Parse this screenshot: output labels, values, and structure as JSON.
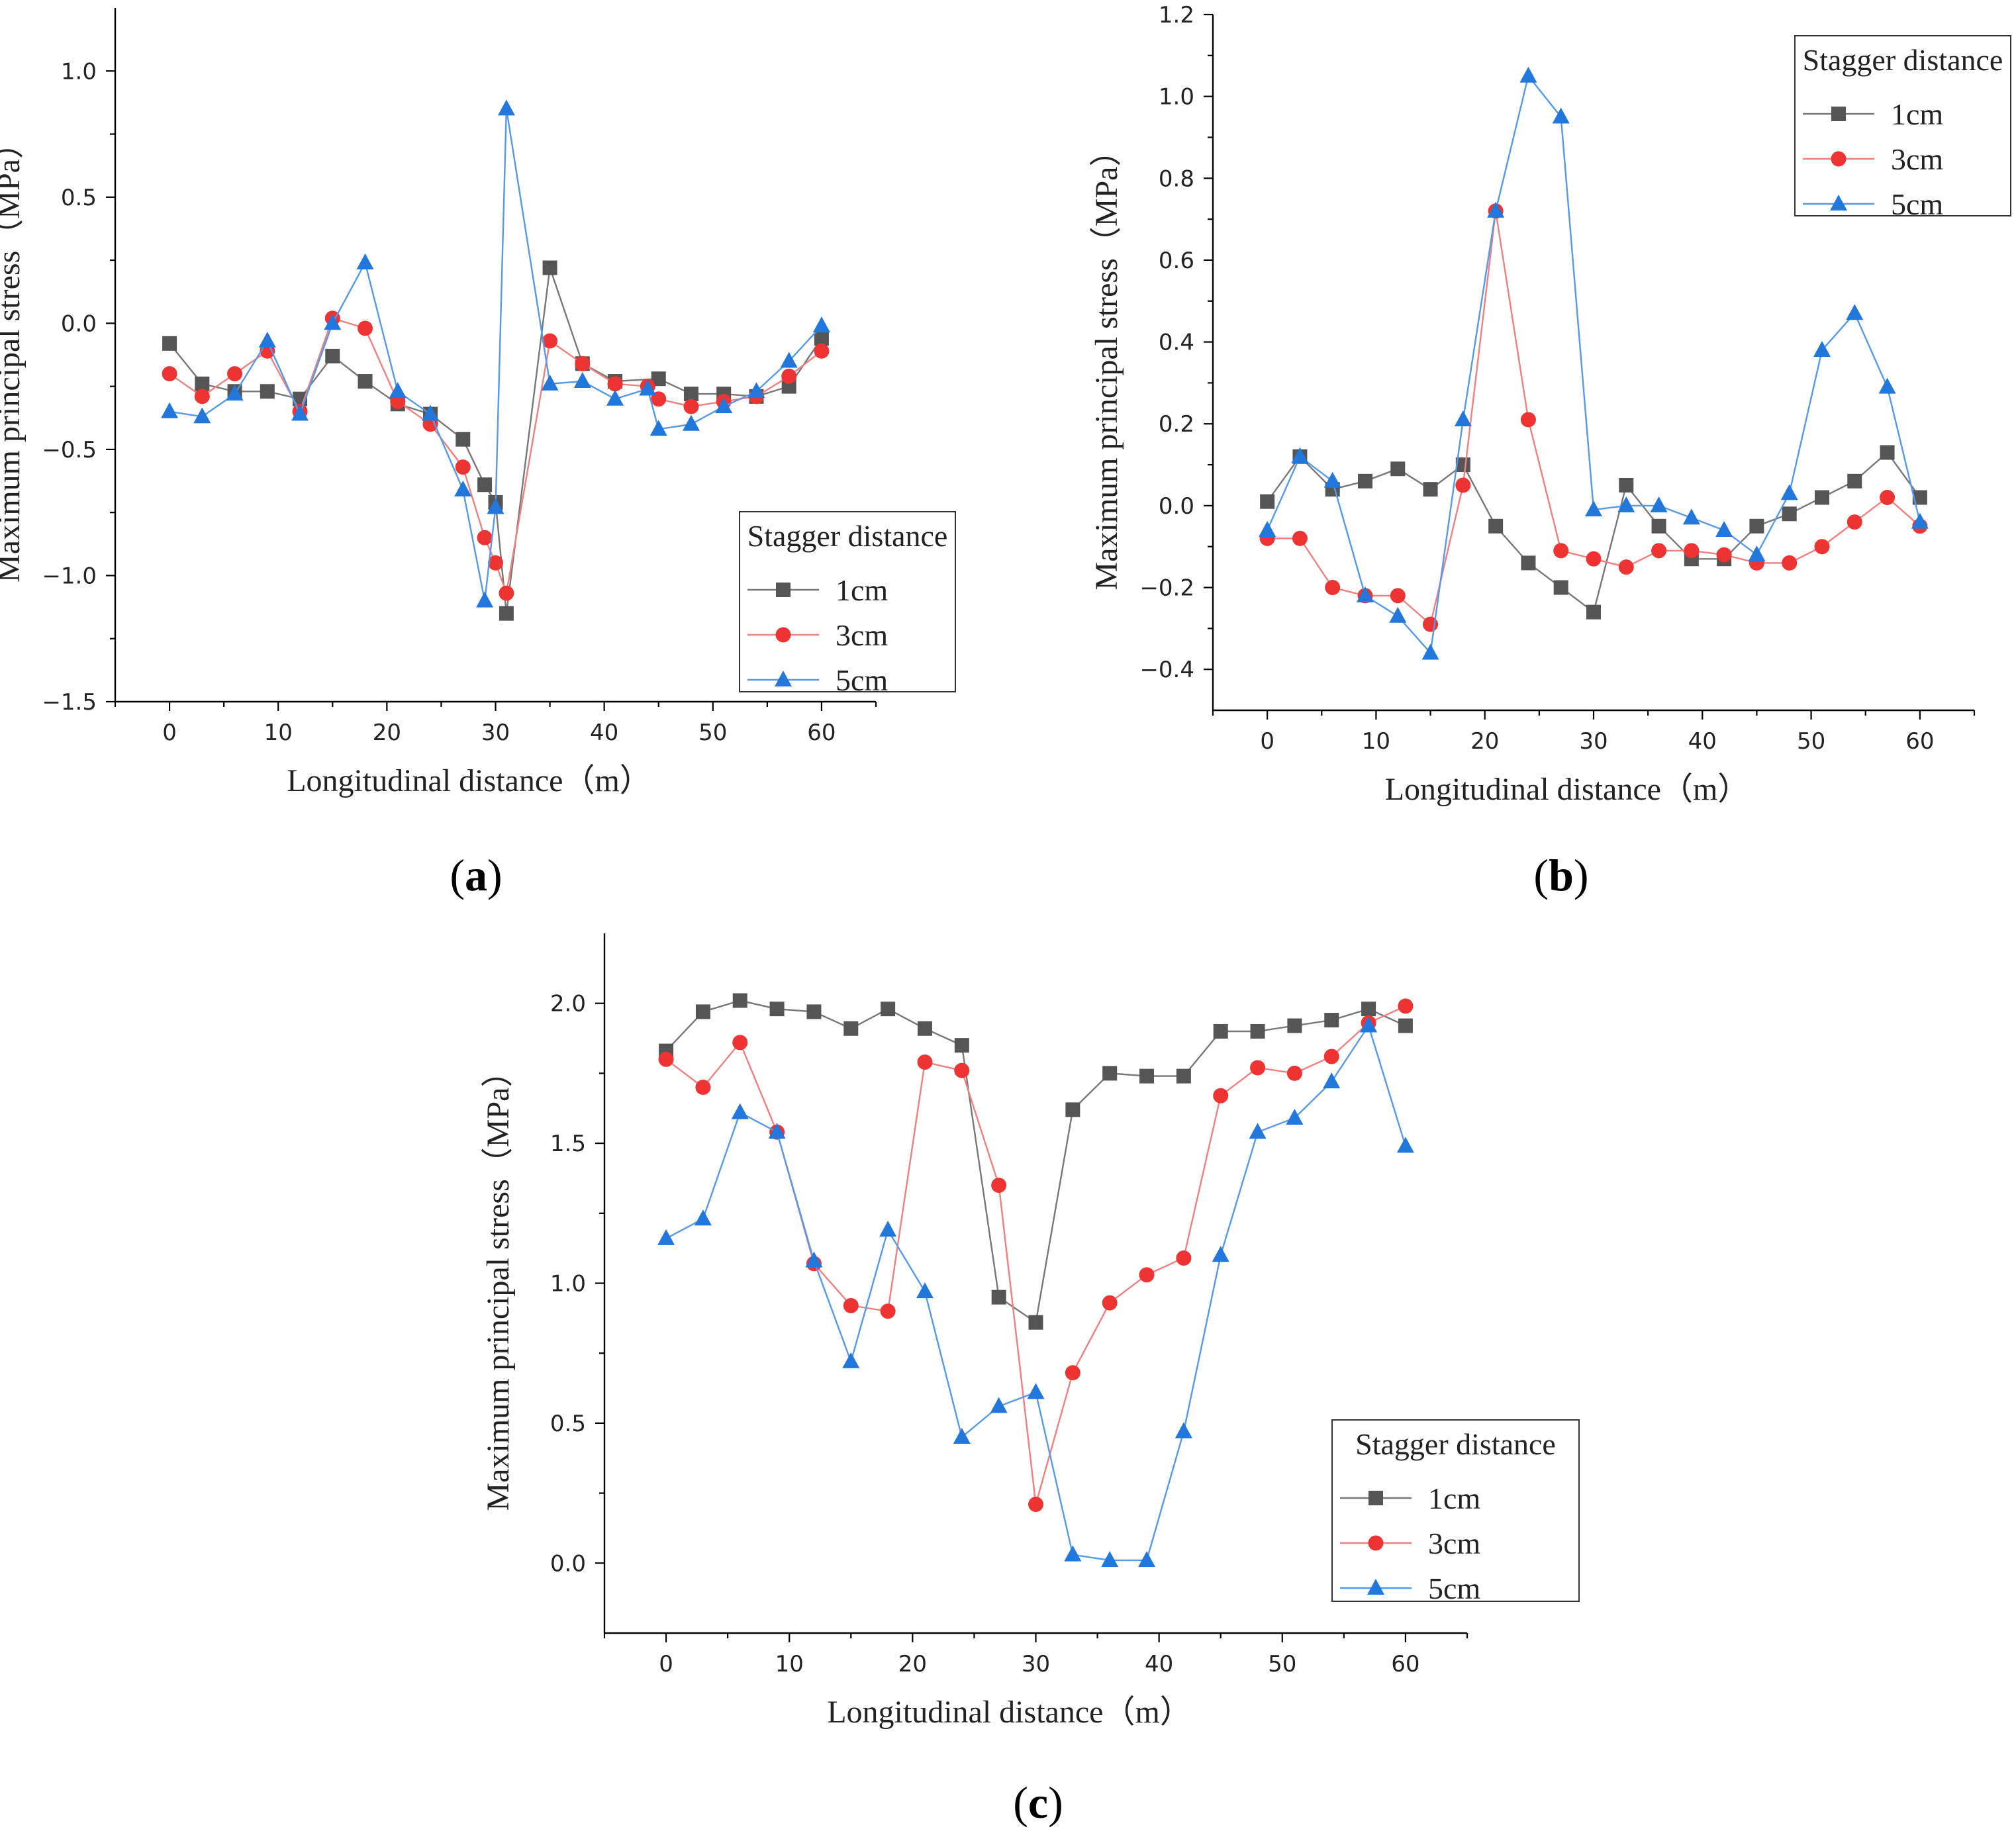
{
  "figure": {
    "panel_labels": [
      "a",
      "b",
      "c"
    ],
    "series_colors": {
      "1cm": "#555555",
      "3cm": "#ee3333",
      "5cm": "#2277dd"
    },
    "line_colors": {
      "1cm": "#777777",
      "3cm": "#f08080",
      "5cm": "#5599e8"
    },
    "markers": {
      "1cm": "square",
      "3cm": "circle",
      "5cm": "triangle"
    }
  },
  "chart_data": [
    {
      "type": "line",
      "panel": "a",
      "xlabel": "Longitudinal distance（m）",
      "ylabel": "Maximum principal stress（MPa）",
      "xlim": [
        -5,
        65
      ],
      "ylim": [
        -1.5,
        1.25
      ],
      "xticks": [
        0,
        10,
        20,
        30,
        40,
        50,
        60
      ],
      "yticks": [
        -1.5,
        -1.0,
        -0.5,
        0.0,
        0.5,
        1.0
      ],
      "ytick_labels": [
        "−1.5",
        "−1.0",
        "−0.5",
        "0.0",
        "0.5",
        "1.0"
      ],
      "legend": {
        "title": "Stagger distance",
        "entries": [
          "1cm",
          "3cm",
          "5cm"
        ],
        "placement": "lower-right"
      },
      "series": [
        {
          "name": "1cm",
          "x": [
            0,
            3,
            6,
            9,
            12,
            15,
            18,
            21,
            24,
            27,
            29,
            30,
            31,
            35,
            38,
            41,
            45,
            48,
            51,
            54,
            57,
            60
          ],
          "y": [
            -0.08,
            -0.24,
            -0.27,
            -0.27,
            -0.3,
            -0.13,
            -0.23,
            -0.32,
            -0.36,
            -0.46,
            -0.64,
            -0.71,
            -1.15,
            0.22,
            -0.16,
            -0.23,
            -0.22,
            -0.28,
            -0.28,
            -0.29,
            -0.25,
            -0.06
          ]
        },
        {
          "name": "3cm",
          "x": [
            0,
            3,
            6,
            9,
            12,
            15,
            18,
            21,
            24,
            27,
            29,
            30,
            31,
            35,
            38,
            41,
            44,
            45,
            48,
            51,
            54,
            57,
            60
          ],
          "y": [
            -0.2,
            -0.29,
            -0.2,
            -0.11,
            -0.35,
            0.02,
            -0.02,
            -0.31,
            -0.4,
            -0.57,
            -0.85,
            -0.95,
            -1.07,
            -0.07,
            -0.16,
            -0.24,
            -0.25,
            -0.3,
            -0.33,
            -0.31,
            -0.29,
            -0.21,
            -0.11
          ]
        },
        {
          "name": "5cm",
          "x": [
            0,
            3,
            6,
            9,
            12,
            15,
            18,
            21,
            24,
            27,
            29,
            30,
            31,
            35,
            38,
            41,
            44,
            45,
            48,
            51,
            54,
            57,
            60
          ],
          "y": [
            -0.35,
            -0.37,
            -0.28,
            -0.07,
            -0.36,
            0.0,
            0.24,
            -0.27,
            -0.36,
            -0.66,
            -1.1,
            -0.73,
            0.85,
            -0.24,
            -0.23,
            -0.3,
            -0.26,
            -0.42,
            -0.4,
            -0.33,
            -0.27,
            -0.15,
            -0.01
          ]
        }
      ]
    },
    {
      "type": "line",
      "panel": "b",
      "xlabel": "Longitudinal distance（m）",
      "ylabel": "Maximum principal stress（MPa）",
      "xlim": [
        -5,
        65
      ],
      "ylim": [
        -0.5,
        1.2
      ],
      "xticks": [
        0,
        10,
        20,
        30,
        40,
        50,
        60
      ],
      "yticks": [
        -0.4,
        -0.2,
        0.0,
        0.2,
        0.4,
        0.6,
        0.8,
        1.0,
        1.2
      ],
      "ytick_labels": [
        "−0.4",
        "−0.2",
        "0.0",
        "0.2",
        "0.4",
        "0.6",
        "0.8",
        "1.0",
        "1.2"
      ],
      "legend": {
        "title": "Stagger distance",
        "entries": [
          "1cm",
          "3cm",
          "5cm"
        ],
        "placement": "top-right"
      },
      "series": [
        {
          "name": "1cm",
          "x": [
            0,
            3,
            6,
            9,
            12,
            15,
            18,
            21,
            24,
            27,
            30,
            33,
            36,
            39,
            42,
            45,
            48,
            51,
            54,
            57,
            60
          ],
          "y": [
            0.01,
            0.12,
            0.04,
            0.06,
            0.09,
            0.04,
            0.1,
            -0.05,
            -0.14,
            -0.2,
            -0.26,
            0.05,
            -0.05,
            -0.13,
            -0.13,
            -0.05,
            -0.02,
            0.02,
            0.06,
            0.13,
            0.02
          ]
        },
        {
          "name": "3cm",
          "x": [
            0,
            3,
            6,
            9,
            12,
            15,
            18,
            21,
            24,
            27,
            30,
            33,
            36,
            39,
            42,
            45,
            48,
            51,
            54,
            57,
            60
          ],
          "y": [
            -0.08,
            -0.08,
            -0.2,
            -0.22,
            -0.22,
            -0.29,
            0.05,
            0.72,
            0.21,
            -0.11,
            -0.13,
            -0.15,
            -0.11,
            -0.11,
            -0.12,
            -0.14,
            -0.14,
            -0.1,
            -0.04,
            0.02,
            -0.05
          ]
        },
        {
          "name": "5cm",
          "x": [
            0,
            3,
            6,
            9,
            12,
            15,
            18,
            21,
            24,
            27,
            30,
            33,
            36,
            39,
            42,
            45,
            48,
            51,
            54,
            57,
            60
          ],
          "y": [
            -0.06,
            0.12,
            0.06,
            -0.22,
            -0.27,
            -0.36,
            0.21,
            0.72,
            1.05,
            0.95,
            -0.01,
            0.0,
            0.0,
            -0.03,
            -0.06,
            -0.12,
            0.03,
            0.38,
            0.47,
            0.29,
            -0.04
          ]
        }
      ]
    },
    {
      "type": "line",
      "panel": "c",
      "xlabel": "Longitudinal distance（m）",
      "ylabel": "Maximum principal stress（MPa）",
      "xlim": [
        -5,
        65
      ],
      "ylim": [
        -0.25,
        2.25
      ],
      "xticks": [
        0,
        10,
        20,
        30,
        40,
        50,
        60
      ],
      "yticks": [
        0.0,
        0.5,
        1.0,
        1.5,
        2.0
      ],
      "ytick_labels": [
        "0.0",
        "0.5",
        "1.0",
        "1.5",
        "2.0"
      ],
      "legend": {
        "title": "Stagger distance",
        "entries": [
          "1cm",
          "3cm",
          "5cm"
        ],
        "placement": "lower-right"
      },
      "series": [
        {
          "name": "1cm",
          "x": [
            0,
            3,
            6,
            9,
            12,
            15,
            18,
            21,
            24,
            27,
            30,
            33,
            36,
            39,
            42,
            45,
            48,
            51,
            54,
            57,
            60
          ],
          "y": [
            1.83,
            1.97,
            2.01,
            1.98,
            1.97,
            1.91,
            1.98,
            1.91,
            1.85,
            0.95,
            0.86,
            1.62,
            1.75,
            1.74,
            1.74,
            1.9,
            1.9,
            1.92,
            1.94,
            1.98,
            1.92
          ]
        },
        {
          "name": "3cm",
          "x": [
            0,
            3,
            6,
            9,
            12,
            15,
            18,
            21,
            24,
            27,
            30,
            33,
            36,
            39,
            42,
            45,
            48,
            51,
            54,
            57,
            60
          ],
          "y": [
            1.8,
            1.7,
            1.86,
            1.54,
            1.07,
            0.92,
            0.9,
            1.79,
            1.76,
            1.35,
            0.21,
            0.68,
            0.93,
            1.03,
            1.09,
            1.67,
            1.77,
            1.75,
            1.81,
            1.93,
            1.99
          ]
        },
        {
          "name": "5cm",
          "x": [
            0,
            3,
            6,
            9,
            12,
            15,
            18,
            21,
            24,
            27,
            30,
            33,
            36,
            39,
            42,
            45,
            48,
            51,
            54,
            57,
            60
          ],
          "y": [
            1.16,
            1.23,
            1.61,
            1.54,
            1.08,
            0.72,
            1.19,
            0.97,
            0.45,
            0.56,
            0.61,
            0.03,
            0.01,
            0.01,
            0.47,
            1.1,
            1.54,
            1.59,
            1.72,
            1.92,
            1.49
          ]
        }
      ]
    }
  ]
}
